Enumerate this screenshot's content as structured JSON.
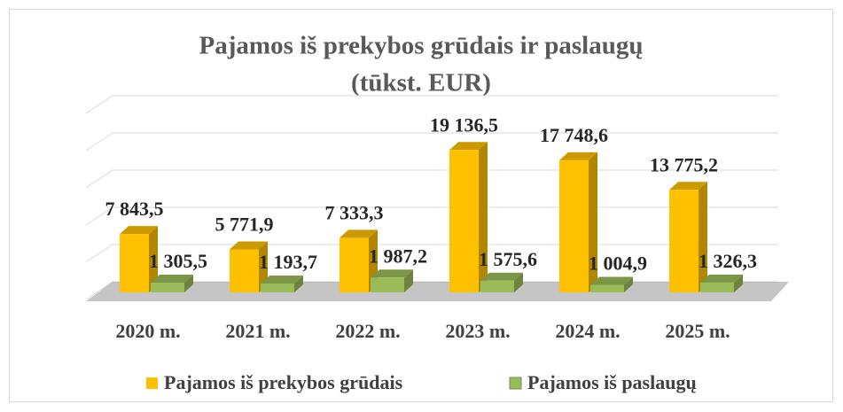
{
  "chart_data": {
    "type": "bar3d",
    "title": "Pajamos iš prekybos grūdais ir paslaugų",
    "subtitle": "(tūkst. EUR)",
    "categories": [
      "2020 m.",
      "2021 m.",
      "2022 m.",
      "2023 m.",
      "2024 m.",
      "2025 m."
    ],
    "series": [
      {
        "name": "Pajamos iš prekybos grūdais",
        "color": "#ffc000",
        "values": [
          7843.5,
          5771.9,
          7333.3,
          19136.5,
          17748.6,
          13775.2
        ],
        "value_labels": [
          "7 843,5",
          "5 771,9",
          "7 333,3",
          "19 136,5",
          "17 748,6",
          "13 775,2"
        ]
      },
      {
        "name": "Pajamos iš paslaugų",
        "color": "#9bbb59",
        "values": [
          1305.5,
          1193.7,
          1987.2,
          1575.6,
          1004.9,
          1326.3
        ],
        "value_labels": [
          "1 305,5",
          "1 193,7",
          "1 987,2",
          "1 575,6",
          "1 004,9",
          "1 326,3"
        ]
      }
    ],
    "ylim": [
      0,
      25000
    ],
    "yticks": [
      0,
      5000,
      10000,
      15000,
      20000,
      25000
    ],
    "grid": true,
    "legend": "bottom"
  }
}
